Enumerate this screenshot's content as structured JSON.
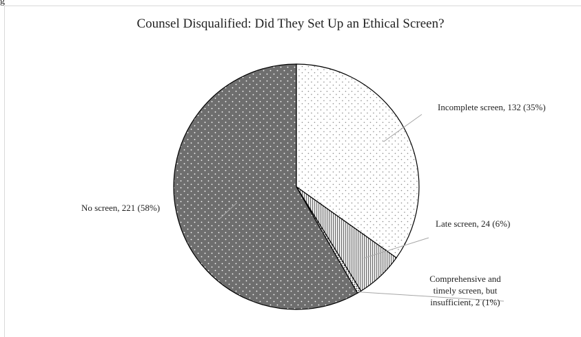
{
  "figure_label": "g",
  "chart_data": {
    "type": "pie",
    "title": "Counsel Disqualified: Did They Set Up an Ethical Screen?",
    "start_angle_deg": 0,
    "direction": "clockwise",
    "slices": [
      {
        "label": "Incomplete screen",
        "count": 132,
        "percent": "35%",
        "pattern": "sparse-dots",
        "fill": "#ffffff",
        "text": [
          "Incomplete screen, 132 (35%)"
        ]
      },
      {
        "label": "Late screen",
        "count": 24,
        "percent": "6%",
        "pattern": "vertical-stripes",
        "fill": "#ffffff",
        "text": [
          "Late screen, 24 (6%)"
        ]
      },
      {
        "label": "Comprehensive and timely screen, but insufficient",
        "count": 2,
        "percent": "1%",
        "pattern": "dense-dots",
        "fill": "#ffffff",
        "text": [
          "Comprehensive and",
          "timely screen, but",
          "insufficient, 2 (1%)"
        ]
      },
      {
        "label": "No screen",
        "count": 221,
        "percent": "58%",
        "pattern": "white-dots-on-dark",
        "fill": "#6e6e6e",
        "text": [
          "No screen, 221 (58%)"
        ]
      }
    ]
  }
}
